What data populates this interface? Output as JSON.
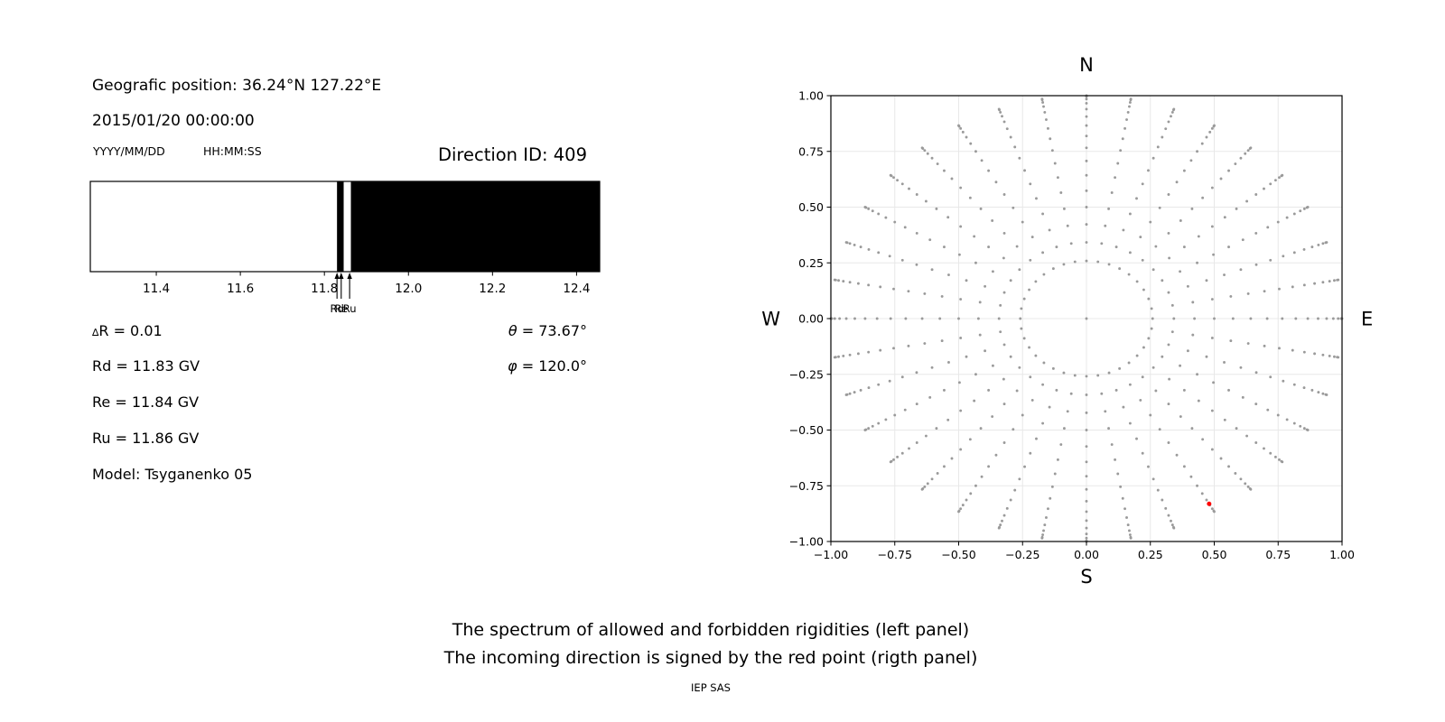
{
  "header": {
    "geo_position": "Geografic position: 36.24°N 127.22°E",
    "datetime": "2015/01/20 00:00:00",
    "date_format_label": "YYYY/MM/DD",
    "time_format_label": "HH:MM:SS",
    "direction_id": "Direction ID: 409"
  },
  "params": {
    "delta_symbol": "∆",
    "delta_rest": "R = 0.01",
    "rd": "Rd = 11.83 GV",
    "re": "Re = 11.84 GV",
    "ru": "Ru = 11.86 GV",
    "model": "Model: Tsyganenko 05",
    "theta_symbol": "θ",
    "theta_rest": " = 73.67°",
    "phi_symbol": "φ",
    "phi_rest": " = 120.0°"
  },
  "caption": {
    "line1": "The spectrum of allowed and forbidden rigidities (left panel)",
    "line2": "The incoming direction is signed by the red point (rigth panel)",
    "credit": "IEP SAS"
  },
  "colors": {
    "allowed": "#000000",
    "forbidden": "#ffffff",
    "grid_dots": "#9a9a9a",
    "highlight": "#ff0000",
    "gridline": "#e8e8e8",
    "axis": "#000000"
  },
  "chart_data": [
    {
      "id": "rigidity-spectrum",
      "type": "area",
      "xlim": [
        11.243,
        12.455
      ],
      "xtick_values": [
        11.4,
        11.6,
        11.8,
        12.0,
        12.2,
        12.4
      ],
      "xtick_labels": [
        "11.4",
        "11.6",
        "11.8",
        "12.0",
        "12.2",
        "12.4"
      ],
      "segments": [
        {
          "from": 11.243,
          "to": 11.83,
          "state": "forbidden"
        },
        {
          "from": 11.83,
          "to": 11.846,
          "state": "allowed"
        },
        {
          "from": 11.846,
          "to": 11.863,
          "state": "forbidden"
        },
        {
          "from": 11.863,
          "to": 12.455,
          "state": "allowed"
        }
      ],
      "markers": [
        {
          "label": "Rd",
          "x": 11.83
        },
        {
          "label": "Re",
          "x": 11.84
        },
        {
          "label": "Ru",
          "x": 11.86
        }
      ]
    },
    {
      "id": "direction-grid",
      "type": "scatter",
      "xlim": [
        -1,
        1
      ],
      "ylim": [
        -1,
        1
      ],
      "tick_values": [
        -1,
        -0.75,
        -0.5,
        -0.25,
        0,
        0.25,
        0.5,
        0.75,
        1
      ],
      "xtick_labels": [
        "−1.00",
        "−0.75",
        "−0.50",
        "−0.25",
        "0.00",
        "0.25",
        "0.50",
        "0.75",
        "1.00"
      ],
      "ytick_labels": [
        "−1.00",
        "−0.75",
        "−0.50",
        "−0.25",
        "0.00",
        "0.25",
        "0.50",
        "0.75",
        "1.00"
      ],
      "compass": {
        "top": "N",
        "bottom": "S",
        "left": "W",
        "right": "E"
      },
      "direction_grid": {
        "azimuth_step_deg": 10,
        "zenith_min_deg": 15,
        "zenith_max_deg": 90,
        "zenith_step_deg": 5,
        "radius_rule": "r = sin(zenith)",
        "center_point": true
      },
      "highlight_point": {
        "x": 0.48,
        "y": -0.831
      }
    }
  ]
}
